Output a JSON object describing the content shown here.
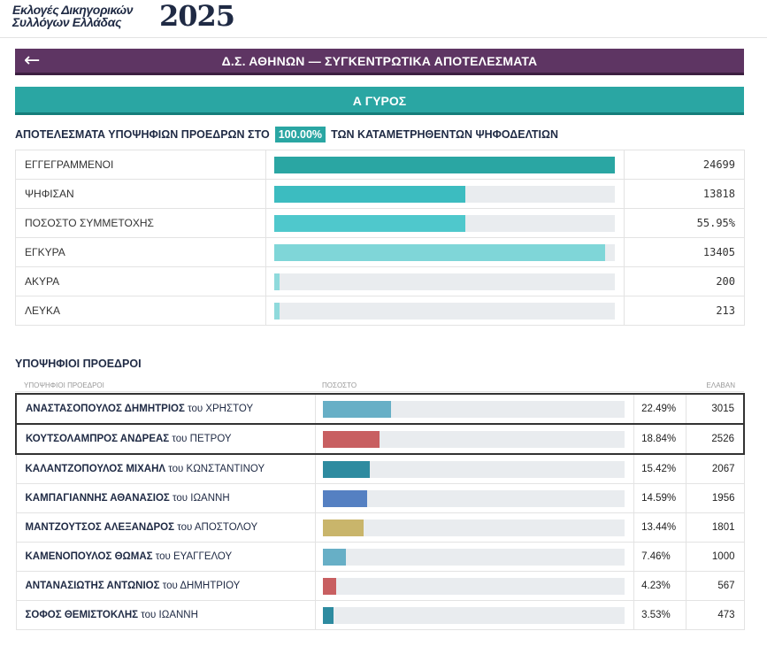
{
  "header": {
    "logo_line1": "Εκλογές Δικηγορικών",
    "logo_line2": "Συλλόγων Ελλάδας",
    "logo_year": "2025"
  },
  "title_bar": {
    "back_icon": "arrow-left-icon",
    "title": "Δ.Σ. ΑΘΗΝΩΝ — ΣΥΓΚΕΝΤΡΩΤΙΚΑ ΑΠΟΤΕΛΕΣΜΑΤΑ"
  },
  "round": {
    "label": "Α ΓΥΡΟΣ"
  },
  "summary": {
    "prefix": "ΑΠΟΤΕΛΕΣΜΑΤΑ ΥΠΟΨΗΦΙΩΝ ΠΡΟΕΔΡΩΝ ΣΤΟ",
    "percent": "100.00%",
    "suffix": "ΤΩΝ ΚΑΤΑΜΕΤΡΗΘΕΝΤΩΝ ΨΗΦΟΔΕΛΤΙΩΝ"
  },
  "stats": [
    {
      "label": "ΕΓΓΕΓΡΑΜΜΕΝΟΙ",
      "value": "24699",
      "fill_pct": 100,
      "color": "#2aa6a3"
    },
    {
      "label": "ΨΗΦΙΣΑΝ",
      "value": "13818",
      "fill_pct": 55.95,
      "color": "#3cbcc0"
    },
    {
      "label": "ΠΟΣΟΣΤΟ ΣΥΜΜΕΤΟΧΗΣ",
      "value": "55.95%",
      "fill_pct": 55.95,
      "color": "#4fc8cc"
    },
    {
      "label": "ΕΓΚΥΡΑ",
      "value": "13405",
      "fill_pct": 97.0,
      "color": "#7fd6d8"
    },
    {
      "label": "ΑΚΥΡΑ",
      "value": "200",
      "fill_pct": 1.45,
      "color": "#8fdadc"
    },
    {
      "label": "ΛΕΥΚΑ",
      "value": "213",
      "fill_pct": 1.54,
      "color": "#8fdadc"
    }
  ],
  "candidates_section": {
    "title": "ΥΠΟΨΗΦΙΟΙ ΠΡΟΕΔΡΟΙ",
    "col_candidates": "ΥΠΟΨΗΦΙΟΙ ΠΡΟΕΔΡΟΙ",
    "col_percent": "ΠΟΣΟΣΤΟ",
    "col_votes": "ΕΛΑΒΑΝ"
  },
  "candidates": [
    {
      "name": "ΑΝΑΣΤΑΣΟΠΟΥΛΟΣ ΔΗΜΗΤΡΙΟΣ",
      "suffix": "του ΧΡΗΣΤΟΥ",
      "pct": "22.49%",
      "pct_value": 22.49,
      "votes": "3015",
      "color": "#67afc6",
      "highlight": true
    },
    {
      "name": "ΚΟΥΤΣΟΛΑΜΠΡΟΣ ΑΝΔΡΕΑΣ",
      "suffix": "του ΠΕΤΡΟΥ",
      "pct": "18.84%",
      "pct_value": 18.84,
      "votes": "2526",
      "color": "#c85f61",
      "highlight": true
    },
    {
      "name": "ΚΑΛΑΝΤΖΟΠΟΥΛΟΣ ΜΙΧΑΗΛ",
      "suffix": "του ΚΩΝΣΤΑΝΤΙΝΟΥ",
      "pct": "15.42%",
      "pct_value": 15.42,
      "votes": "2067",
      "color": "#2e8ba0",
      "highlight": false
    },
    {
      "name": "ΚΑΜΠΑΓΙΑΝΝΗΣ ΑΘΑΝΑΣΙΟΣ",
      "suffix": "του ΙΩΑΝΝΗ",
      "pct": "14.59%",
      "pct_value": 14.59,
      "votes": "1956",
      "color": "#5580c2",
      "highlight": false
    },
    {
      "name": "ΜΑΝΤΖΟΥΤΣΟΣ ΑΛΕΞΑΝΔΡΟΣ",
      "suffix": "του ΑΠΟΣΤΟΛΟΥ",
      "pct": "13.44%",
      "pct_value": 13.44,
      "votes": "1801",
      "color": "#c9b56b",
      "highlight": false
    },
    {
      "name": "ΚΑΜΕΝΟΠΟΥΛΟΣ ΘΩΜΑΣ",
      "suffix": "του ΕΥΑΓΓΕΛΟΥ",
      "pct": "7.46%",
      "pct_value": 7.46,
      "votes": "1000",
      "color": "#67afc6",
      "highlight": false
    },
    {
      "name": "ΑΝΤΑΝΑΣΙΩΤΗΣ ΑΝΤΩΝΙΟΣ",
      "suffix": "του ΔΗΜΗΤΡΙΟΥ",
      "pct": "4.23%",
      "pct_value": 4.23,
      "votes": "567",
      "color": "#c85f61",
      "highlight": false
    },
    {
      "name": "ΣΟΦΟΣ ΘΕΜΙΣΤΟΚΛΗΣ",
      "suffix": "του ΙΩΑΝΝΗ",
      "pct": "3.53%",
      "pct_value": 3.53,
      "votes": "473",
      "color": "#2e8ba0",
      "highlight": false
    }
  ]
}
